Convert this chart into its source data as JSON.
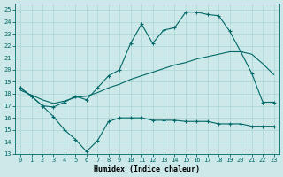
{
  "xlabel": "Humidex (Indice chaleur)",
  "bg_color": "#cce8e8",
  "line_color": "#006868",
  "grid_color": "#aad4d4",
  "xlim": [
    -0.5,
    23.5
  ],
  "ylim": [
    13,
    25.5
  ],
  "xticks": [
    0,
    1,
    2,
    3,
    4,
    5,
    6,
    7,
    8,
    9,
    10,
    11,
    12,
    13,
    14,
    15,
    16,
    17,
    18,
    19,
    20,
    21,
    22,
    23
  ],
  "yticks": [
    13,
    14,
    15,
    16,
    17,
    18,
    19,
    20,
    21,
    22,
    23,
    24,
    25
  ],
  "line1_x": [
    0,
    1,
    2,
    3,
    4,
    5,
    6,
    7,
    8,
    9,
    10,
    11,
    12,
    13,
    14,
    15,
    16,
    17,
    18,
    19,
    20,
    21,
    22,
    23
  ],
  "line1_y": [
    18.5,
    17.8,
    17.0,
    16.1,
    15.0,
    14.2,
    13.2,
    14.1,
    15.7,
    16.0,
    16.0,
    16.0,
    15.8,
    15.8,
    15.8,
    15.7,
    15.7,
    15.7,
    15.5,
    15.5,
    15.5,
    15.3,
    15.3,
    15.3
  ],
  "line2_x": [
    0,
    1,
    2,
    3,
    4,
    5,
    6,
    7,
    8,
    9,
    10,
    11,
    12,
    13,
    14,
    15,
    16,
    17,
    18,
    19,
    20,
    21,
    22,
    23
  ],
  "line2_y": [
    18.5,
    17.8,
    17.0,
    16.9,
    17.3,
    17.8,
    17.5,
    18.5,
    19.5,
    20.0,
    22.2,
    23.8,
    22.2,
    23.3,
    23.5,
    24.8,
    24.8,
    24.6,
    24.5,
    23.2,
    21.5,
    19.7,
    17.3,
    17.3
  ],
  "line3_x": [
    0,
    1,
    2,
    3,
    4,
    5,
    6,
    7,
    8,
    9,
    10,
    11,
    12,
    13,
    14,
    15,
    16,
    17,
    18,
    19,
    20,
    21,
    22,
    23
  ],
  "line3_y": [
    18.3,
    17.9,
    17.5,
    17.2,
    17.4,
    17.7,
    17.8,
    18.1,
    18.5,
    18.8,
    19.2,
    19.5,
    19.8,
    20.1,
    20.4,
    20.6,
    20.9,
    21.1,
    21.3,
    21.5,
    21.5,
    21.3,
    20.5,
    19.6
  ],
  "xlabel_fontsize": 6.0,
  "tick_fontsize": 5.0
}
